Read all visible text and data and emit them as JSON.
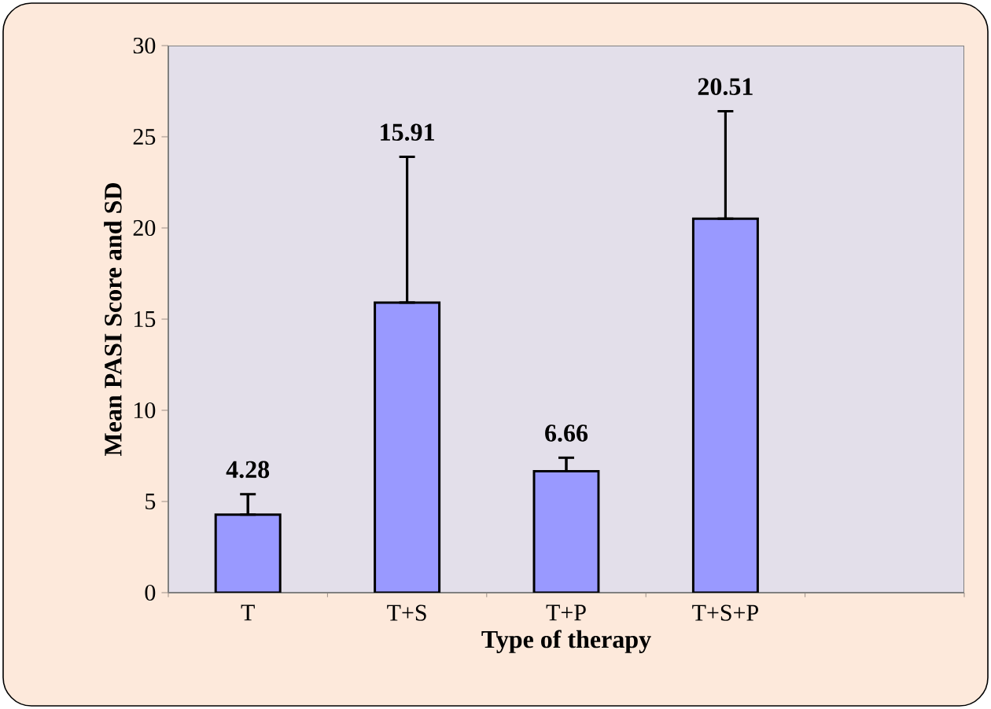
{
  "chart_data": {
    "type": "bar",
    "categories": [
      "T",
      "T+S",
      "T+P",
      "T+S+P",
      null
    ],
    "values": [
      4.28,
      15.91,
      6.66,
      20.51,
      null
    ],
    "errors": [
      [
        4.28,
        5.4
      ],
      [
        15.91,
        23.9
      ],
      [
        6.66,
        7.4
      ],
      [
        20.51,
        26.4
      ],
      null
    ],
    "color": "#9999ff",
    "ylim": [
      0,
      30
    ],
    "yticks": [
      0,
      5,
      10,
      15,
      20,
      25,
      30
    ],
    "xlabel": "Type of therapy",
    "ylabel": "Mean PASI Score and SD",
    "annotations": [
      {
        "text": "4.28",
        "x": "T",
        "y": 5.4
      },
      {
        "text": "15.91",
        "x": "T+S",
        "y": 23.9
      },
      {
        "text": "6.66",
        "x": "T+P",
        "y": 7.4
      },
      {
        "text": "20.51",
        "x": "T+S+P",
        "y": 26.4
      }
    ],
    "grid": false
  }
}
